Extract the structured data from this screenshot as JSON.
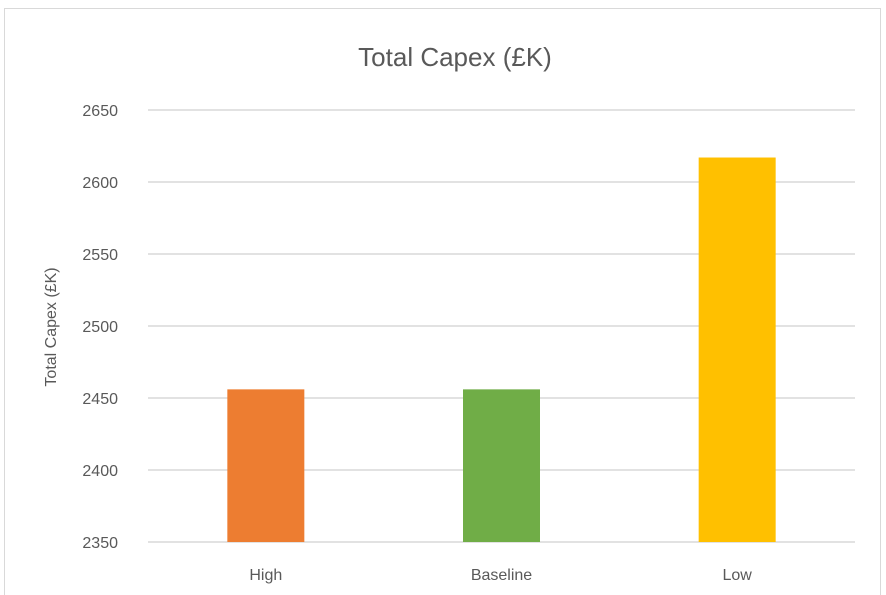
{
  "chart_data": {
    "type": "bar",
    "title": "Total Capex (£K)",
    "xlabel": "",
    "ylabel": "Total Capex (£K)",
    "categories": [
      "High",
      "Baseline",
      "Low"
    ],
    "values": [
      2456,
      2456,
      2617
    ],
    "colors": [
      "#ed7d31",
      "#70ad47",
      "#ffc000"
    ],
    "ylim": [
      2350,
      2650
    ],
    "yticks": [
      2350,
      2400,
      2450,
      2500,
      2550,
      2600,
      2650
    ],
    "grid": true,
    "legend": "none"
  }
}
